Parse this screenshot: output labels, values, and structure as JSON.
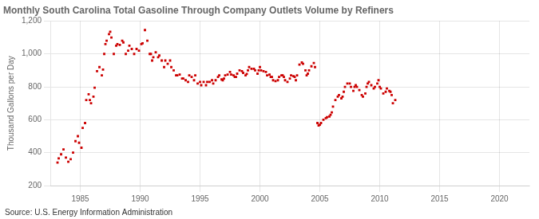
{
  "chart_data": {
    "type": "scatter",
    "title": "Monthly South Carolina Total Gasoline Through Company Outlets Volume by Refiners",
    "ylabel": "Thousand Gallons per Day",
    "annotations": [
      "Source: U.S. Energy Information Administration"
    ],
    "color": "#cc0000",
    "marker": "square",
    "grid": true,
    "xlim": [
      1982.5,
      2022.5
    ],
    "xticks": [
      1985,
      1990,
      1995,
      2000,
      2005,
      2010,
      2015,
      2020
    ],
    "ylim": [
      200,
      1200
    ],
    "yticks": [
      200,
      400,
      600,
      800,
      {
        "value": 1000,
        "label": "1,000"
      },
      {
        "value": 1200,
        "label": "1,200"
      }
    ],
    "x": [
      1983.1,
      1983.2,
      1983.4,
      1983.6,
      1983.8,
      1984.0,
      1984.2,
      1984.4,
      1984.6,
      1984.8,
      1984.9,
      1985.1,
      1985.2,
      1985.4,
      1985.5,
      1985.7,
      1985.8,
      1985.9,
      1986.1,
      1986.2,
      1986.4,
      1986.6,
      1986.8,
      1986.9,
      1987.0,
      1987.1,
      1987.2,
      1987.4,
      1987.5,
      1987.6,
      1987.8,
      1988.0,
      1988.1,
      1988.3,
      1988.5,
      1988.6,
      1988.8,
      1989.0,
      1989.1,
      1989.3,
      1989.5,
      1989.7,
      1989.9,
      1990.1,
      1990.2,
      1990.4,
      1990.6,
      1990.8,
      1990.9,
      1991.0,
      1991.1,
      1991.3,
      1991.5,
      1991.6,
      1991.8,
      1992.0,
      1992.1,
      1992.3,
      1992.5,
      1992.6,
      1992.8,
      1993.0,
      1993.1,
      1993.3,
      1993.5,
      1993.6,
      1993.8,
      1994.0,
      1994.1,
      1994.3,
      1994.5,
      1994.6,
      1994.8,
      1995.0,
      1995.1,
      1995.3,
      1995.5,
      1995.6,
      1995.8,
      1996.0,
      1996.1,
      1996.3,
      1996.5,
      1996.6,
      1996.8,
      1996.9,
      1997.0,
      1997.1,
      1997.3,
      1997.5,
      1997.6,
      1997.8,
      1997.9,
      1998.0,
      1998.1,
      1998.3,
      1998.5,
      1998.6,
      1998.8,
      1998.9,
      1999.0,
      1999.1,
      1999.3,
      1999.5,
      1999.6,
      1999.8,
      1999.9,
      2000.0,
      2000.1,
      2000.3,
      2000.5,
      2000.6,
      2000.8,
      2000.9,
      2001.0,
      2001.1,
      2001.3,
      2001.5,
      2001.6,
      2001.8,
      2001.9,
      2002.0,
      2002.1,
      2002.3,
      2002.5,
      2002.6,
      2002.8,
      2002.9,
      2003.0,
      2003.1,
      2003.3,
      2003.5,
      2003.6,
      2003.8,
      2003.9,
      2004.0,
      2004.1,
      2004.3,
      2004.5,
      2004.6,
      2004.8,
      2004.9,
      2005.0,
      2005.1,
      2005.3,
      2005.5,
      2005.6,
      2005.8,
      2005.9,
      2006.0,
      2006.1,
      2006.3,
      2006.5,
      2006.6,
      2006.8,
      2006.9,
      2007.0,
      2007.1,
      2007.3,
      2007.5,
      2007.6,
      2007.8,
      2007.9,
      2008.0,
      2008.1,
      2008.3,
      2008.5,
      2008.6,
      2008.8,
      2008.9,
      2009.0,
      2009.1,
      2009.3,
      2009.5,
      2009.6,
      2009.8,
      2009.9,
      2010.0,
      2010.1,
      2010.3,
      2010.5,
      2010.6,
      2010.8,
      2010.9,
      2011.0,
      2011.1,
      2011.3
    ],
    "values": [
      340,
      365,
      390,
      420,
      370,
      345,
      360,
      400,
      470,
      500,
      460,
      430,
      550,
      580,
      720,
      755,
      720,
      700,
      740,
      795,
      895,
      920,
      870,
      905,
      1000,
      1060,
      1080,
      1120,
      1135,
      1100,
      1000,
      1050,
      1060,
      1055,
      1080,
      1070,
      1000,
      1020,
      1050,
      1030,
      1000,
      1030,
      1020,
      1060,
      1065,
      1145,
      1080,
      1000,
      1000,
      960,
      980,
      1010,
      980,
      990,
      960,
      920,
      960,
      940,
      960,
      920,
      900,
      870,
      870,
      875,
      850,
      850,
      840,
      830,
      870,
      860,
      840,
      870,
      820,
      830,
      810,
      830,
      810,
      830,
      830,
      840,
      820,
      840,
      860,
      870,
      845,
      840,
      850,
      870,
      875,
      890,
      875,
      870,
      860,
      860,
      880,
      900,
      895,
      885,
      870,
      878,
      900,
      920,
      910,
      910,
      900,
      880,
      900,
      920,
      900,
      895,
      890,
      870,
      875,
      860,
      860,
      840,
      835,
      840,
      860,
      870,
      870,
      860,
      840,
      830,
      850,
      870,
      865,
      860,
      840,
      870,
      935,
      948,
      940,
      900,
      870,
      880,
      900,
      925,
      945,
      920,
      580,
      565,
      570,
      580,
      600,
      610,
      615,
      620,
      630,
      645,
      680,
      720,
      740,
      750,
      730,
      740,
      770,
      800,
      820,
      820,
      800,
      775,
      800,
      810,
      800,
      780,
      750,
      740,
      760,
      800,
      820,
      830,
      810,
      790,
      800,
      820,
      840,
      800,
      790,
      760,
      770,
      790,
      775,
      770,
      750,
      700,
      720
    ]
  }
}
